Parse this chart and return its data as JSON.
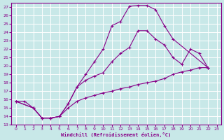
{
  "background_color": "#c8e8e8",
  "grid_color": "#ffffff",
  "line_color": "#880088",
  "xlabel": "Windchill (Refroidissement éolien,°C)",
  "xlim": [
    -0.5,
    23.5
  ],
  "ylim": [
    13,
    27.5
  ],
  "yticks": [
    13,
    14,
    15,
    16,
    17,
    18,
    19,
    20,
    21,
    22,
    23,
    24,
    25,
    26,
    27
  ],
  "xticks": [
    0,
    1,
    2,
    3,
    4,
    5,
    6,
    7,
    8,
    9,
    10,
    11,
    12,
    13,
    14,
    15,
    16,
    17,
    18,
    19,
    20,
    21,
    22,
    23
  ],
  "line1_x": [
    0,
    1,
    2,
    3,
    4,
    5,
    6,
    7,
    8,
    9,
    10,
    11,
    12,
    13,
    14,
    15,
    16,
    17,
    18,
    19,
    20,
    21,
    22
  ],
  "line1_y": [
    15.8,
    15.8,
    15.0,
    13.8,
    13.8,
    14.0,
    15.0,
    15.8,
    16.2,
    16.5,
    16.8,
    17.0,
    17.3,
    17.5,
    17.8,
    18.0,
    18.2,
    18.5,
    19.0,
    19.3,
    19.5,
    19.8,
    19.8
  ],
  "line2_x": [
    0,
    2,
    3,
    4,
    5,
    6,
    7,
    8,
    9,
    10,
    11,
    12,
    13,
    14,
    15,
    16,
    17,
    18,
    19,
    20,
    21,
    22
  ],
  "line2_y": [
    15.8,
    15.0,
    13.8,
    13.8,
    14.0,
    15.5,
    17.5,
    18.3,
    18.8,
    19.2,
    20.5,
    21.5,
    22.2,
    24.2,
    24.2,
    23.2,
    22.5,
    21.0,
    20.2,
    22.0,
    21.5,
    19.8
  ],
  "line3_x": [
    0,
    2,
    3,
    4,
    5,
    6,
    7,
    8,
    9,
    10,
    11,
    12,
    13,
    14,
    15,
    16,
    17,
    18,
    22
  ],
  "line3_y": [
    15.8,
    15.0,
    13.8,
    13.8,
    14.0,
    15.5,
    17.5,
    19.0,
    20.5,
    22.0,
    24.8,
    25.3,
    27.1,
    27.2,
    27.2,
    26.7,
    24.8,
    23.2,
    19.8
  ]
}
